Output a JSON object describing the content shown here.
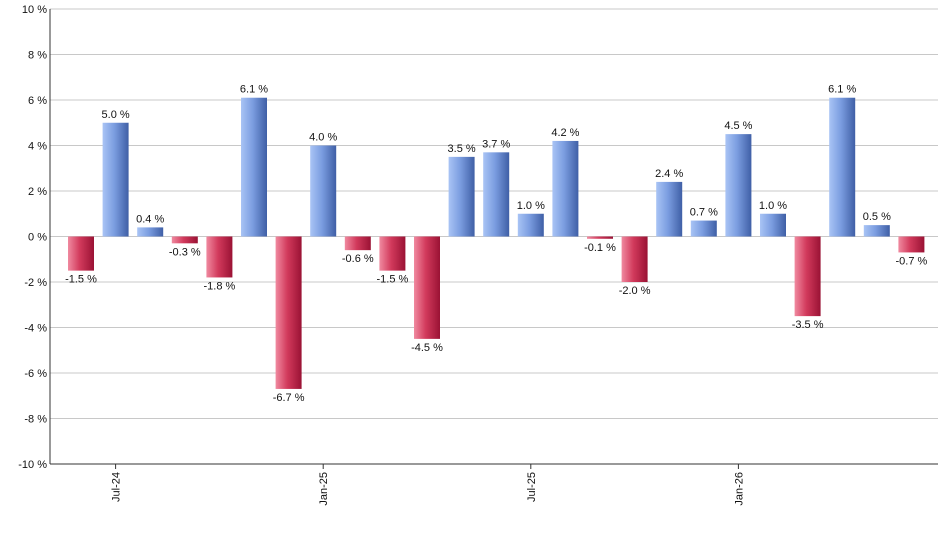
{
  "chart_data": {
    "type": "bar",
    "title": "",
    "xlabel": "",
    "ylabel": "",
    "ylim": [
      -10,
      10
    ],
    "y_ticks": [
      10,
      8,
      6,
      4,
      2,
      0,
      -2,
      -4,
      -6,
      -8,
      -10
    ],
    "y_tick_labels": [
      "10 %",
      "8 %",
      "6 %",
      "4 %",
      "2 %",
      "0 %",
      "-2 %",
      "-4 %",
      "-6 %",
      "-8 %",
      "-10 %"
    ],
    "grid": true,
    "x_tick_labels": [
      {
        "label": "Jul-24",
        "index": 1
      },
      {
        "label": "Jan-25",
        "index": 7
      },
      {
        "label": "Jul-25",
        "index": 13
      },
      {
        "label": "Jan-26",
        "index": 19
      }
    ],
    "values": [
      -1.5,
      5.0,
      0.4,
      -0.3,
      -1.8,
      6.1,
      -6.7,
      4.0,
      -0.6,
      -1.5,
      -4.5,
      3.5,
      3.7,
      1.0,
      4.2,
      -0.1,
      -2.0,
      2.4,
      0.7,
      4.5,
      1.0,
      -3.5,
      6.1,
      0.5,
      -0.7
    ],
    "value_labels": [
      "-1.5 %",
      "5.0 %",
      "0.4 %",
      "-0.3 %",
      "-1.8 %",
      "6.1 %",
      "-6.7 %",
      "4.0 %",
      "-0.6 %",
      "-1.5 %",
      "-4.5 %",
      "3.5 %",
      "3.7 %",
      "1.0 %",
      "4.2 %",
      "-0.1 %",
      "-2.0 %",
      "2.4 %",
      "0.7 %",
      "4.5 %",
      "1.0 %",
      "-3.5 %",
      "6.1 %",
      "0.5 %",
      "-0.7 %"
    ],
    "colors": {
      "positive_light": "#a9c4f5",
      "positive_dark": "#4a6fb8",
      "negative_light": "#f08aa0",
      "negative_dark": "#a8163a",
      "grid": "#c8c8c8",
      "axis": "#333333"
    }
  }
}
